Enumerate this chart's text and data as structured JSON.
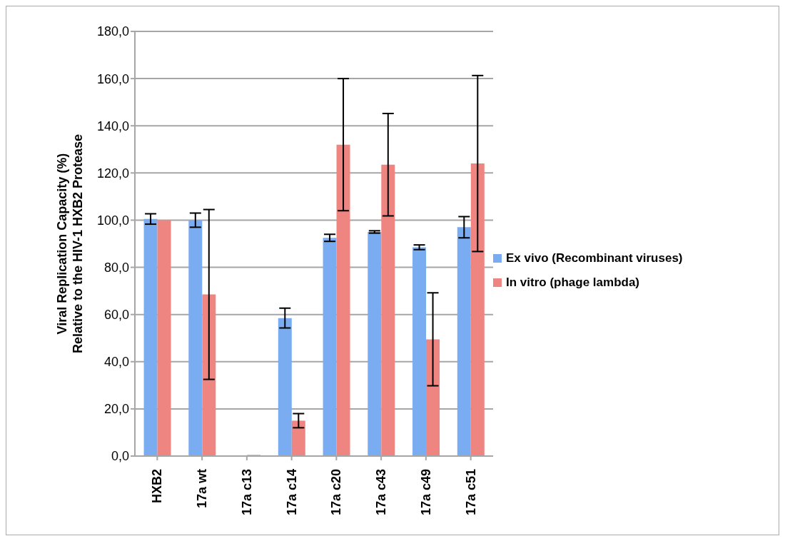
{
  "chart_data": {
    "type": "bar",
    "ylabel": "Viral Replication Capacity (%)\nRelative to the HIV-1 HXB2 Protease",
    "categories": [
      "HXB2",
      "17a wt",
      "17a c13",
      "17a c14",
      "17a c20",
      "17a c43",
      "17a c49",
      "17a c51"
    ],
    "series": [
      {
        "name": "Ex vivo (Recombinant viruses)",
        "color": "#79acf0",
        "values": [
          100.5,
          100,
          0,
          58.5,
          92.5,
          95,
          88.5,
          97
        ],
        "errors": [
          2.2,
          3,
          null,
          4.2,
          1.5,
          0.5,
          1,
          4.5
        ]
      },
      {
        "name": "In vitro (phage lambda)",
        "color": "#ee8580",
        "values": [
          100,
          68.5,
          0.5,
          15,
          132,
          123.5,
          49.5,
          124
        ],
        "errors": [
          0,
          36,
          null,
          3,
          28,
          21.7,
          19.7,
          37.3
        ]
      }
    ],
    "ylim": [
      0,
      180
    ],
    "yticks": [
      {
        "value": 0,
        "label": "0,0"
      },
      {
        "value": 20,
        "label": "20,0"
      },
      {
        "value": 40,
        "label": "40,0"
      },
      {
        "value": 60,
        "label": "60,0"
      },
      {
        "value": 80,
        "label": "80,0"
      },
      {
        "value": 100,
        "label": "100,0"
      },
      {
        "value": 120,
        "label": "120,0"
      },
      {
        "value": 140,
        "label": "140,0"
      },
      {
        "value": 160,
        "label": "160,0"
      },
      {
        "value": 180,
        "label": "180,0"
      }
    ],
    "grid": "y",
    "legend": "right"
  }
}
